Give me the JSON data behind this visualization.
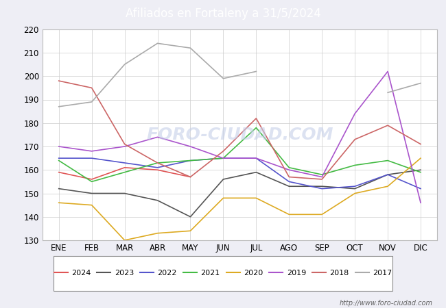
{
  "title": "Afiliados en Fortaleny a 31/5/2024",
  "title_bg_color": "#4f86c6",
  "title_text_color": "#ffffff",
  "months": [
    "ENE",
    "FEB",
    "MAR",
    "ABR",
    "MAY",
    "JUN",
    "JUL",
    "AGO",
    "SEP",
    "OCT",
    "NOV",
    "DIC"
  ],
  "ylim": [
    130,
    220
  ],
  "yticks": [
    130,
    140,
    150,
    160,
    170,
    180,
    190,
    200,
    210,
    220
  ],
  "series": {
    "2024": {
      "color": "#e05555",
      "data": [
        159,
        156,
        161,
        160,
        157,
        null,
        null,
        null,
        null,
        null,
        null,
        null
      ]
    },
    "2023": {
      "color": "#555555",
      "data": [
        152,
        150,
        150,
        147,
        140,
        156,
        159,
        153,
        153,
        152,
        158,
        160
      ]
    },
    "2022": {
      "color": "#5555cc",
      "data": [
        165,
        165,
        163,
        161,
        164,
        165,
        165,
        155,
        152,
        153,
        158,
        152
      ]
    },
    "2021": {
      "color": "#44bb44",
      "data": [
        164,
        155,
        159,
        163,
        164,
        165,
        178,
        161,
        158,
        162,
        164,
        159
      ]
    },
    "2020": {
      "color": "#ddaa22",
      "data": [
        146,
        145,
        130,
        133,
        134,
        148,
        148,
        141,
        141,
        150,
        153,
        165
      ]
    },
    "2019": {
      "color": "#aa55cc",
      "data": [
        170,
        168,
        170,
        174,
        170,
        165,
        165,
        160,
        157,
        184,
        202,
        146
      ]
    },
    "2018": {
      "color": "#cc6666",
      "data": [
        198,
        195,
        171,
        163,
        157,
        168,
        182,
        157,
        156,
        173,
        179,
        171
      ]
    },
    "2017": {
      "color": "#aaaaaa",
      "data": [
        187,
        189,
        205,
        214,
        212,
        199,
        202,
        null,
        null,
        null,
        193,
        197
      ]
    }
  },
  "legend_order": [
    "2024",
    "2023",
    "2022",
    "2021",
    "2020",
    "2019",
    "2018",
    "2017"
  ],
  "watermark": "http://www.foro-ciudad.com",
  "bg_color": "#eeeef5",
  "plot_bg_color": "#ffffff"
}
